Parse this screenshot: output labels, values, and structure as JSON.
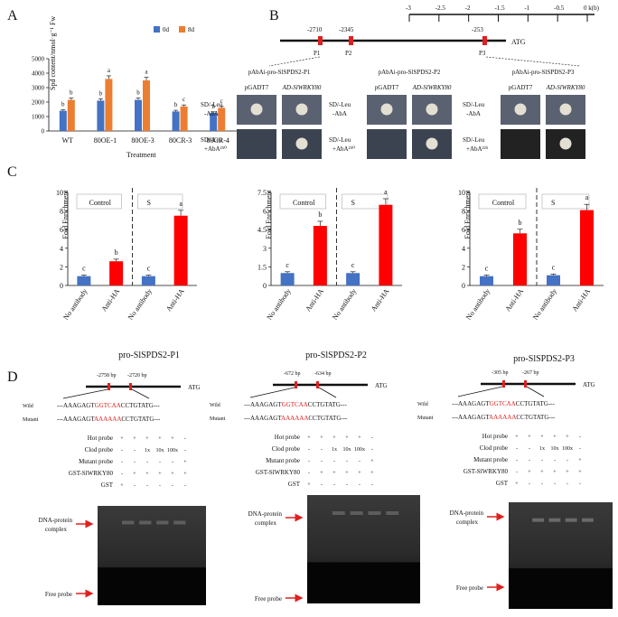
{
  "panels": {
    "a": "A",
    "b": "B",
    "c": "C",
    "d": "D"
  },
  "panelA": {
    "chart_data": {
      "type": "bar",
      "title": "",
      "ylabel": "Spd content/nmol·g⁻¹ Fw",
      "xlabel": "Treatment",
      "ylim": [
        0,
        5000
      ],
      "yticks": [
        "0",
        "1000",
        "2000",
        "3000",
        "4000",
        "5000"
      ],
      "categories": [
        "WT",
        "80OE-1",
        "80OE-3",
        "80CR-3",
        "80CR-4"
      ],
      "series": [
        {
          "name": "0d",
          "color": "#4472c4",
          "values": [
            1400,
            2100,
            2150,
            1350,
            1250
          ],
          "letters": [
            "b",
            "b",
            "b",
            "b",
            "b"
          ]
        },
        {
          "name": "8d",
          "color": "#ed7d31",
          "values": [
            2150,
            3600,
            3500,
            1700,
            1600
          ],
          "letters": [
            "b",
            "a",
            "a",
            "c",
            "c"
          ]
        }
      ]
    }
  },
  "panelB": {
    "scale": {
      "ticks": [
        "-3",
        "-2.5",
        "-2",
        "-1.5",
        "-1",
        "-0.5",
        "0 k(b)"
      ]
    },
    "positions": [
      "-2710",
      "-2345",
      "-253"
    ],
    "sites": [
      "P1",
      "P2",
      "P3"
    ],
    "atg": "ATG",
    "constructs": [
      "pAbAi-pro-SlSPDS2-P1",
      "pAbAi-pro-SlSPDS2-P2",
      "pAbAi-pro-SlSPDS2-P3"
    ],
    "cols": [
      "pGADT7",
      "AD-SlWRKY80"
    ],
    "media_top": [
      "SD/-Leu",
      "-AbA"
    ],
    "media_bot": [
      [
        "SD/-Leu",
        "+AbA²⁵⁰"
      ],
      [
        "SD/-Leu",
        "+AbA²⁵⁰"
      ],
      [
        "SD/-Leu",
        "+AbA²²⁵"
      ]
    ]
  },
  "panelC": {
    "chart_data": [
      {
        "type": "bar",
        "ylabel": "Fold Enrichment",
        "ylim": [
          0,
          10
        ],
        "yticks": [
          "0",
          "2",
          "4",
          "6",
          "8",
          "10"
        ],
        "groups": [
          "Control",
          "S"
        ],
        "categories": [
          "No antibody",
          "Anti-HA",
          "No antibody",
          "Anti-HA"
        ],
        "values": [
          1.0,
          2.6,
          1.0,
          7.5
        ],
        "letters": [
          "c",
          "b",
          "c",
          "a"
        ]
      },
      {
        "type": "bar",
        "ylabel": "Fold Enrichment",
        "ylim": [
          0,
          7.5
        ],
        "yticks": [
          "0",
          "1.5",
          "3",
          "4.5",
          "6",
          "7.5"
        ],
        "groups": [
          "Control",
          "S"
        ],
        "categories": [
          "No antibody",
          "Anti-HA",
          "No antibody",
          "Anti-HA"
        ],
        "values": [
          1.0,
          4.8,
          1.0,
          6.5
        ],
        "letters": [
          "c",
          "b",
          "c",
          "a"
        ]
      },
      {
        "type": "bar",
        "ylabel": "Fold Enrichment",
        "ylim": [
          0,
          10
        ],
        "yticks": [
          "0",
          "2",
          "4",
          "6",
          "8",
          "10"
        ],
        "groups": [
          "Control",
          "S"
        ],
        "categories": [
          "No antibody",
          "Anti-HA",
          "No antibody",
          "Anti-HA"
        ],
        "values": [
          1.0,
          5.6,
          1.1,
          8.1
        ],
        "letters": [
          "c",
          "b",
          "c",
          "a"
        ]
      }
    ]
  },
  "panelD": {
    "titles": [
      "pro-SlSPDS2-P1",
      "pro-SlSPDS2-P2",
      "pro-SlSPDS2-P3"
    ],
    "bp": [
      [
        "-2758 bp",
        "-2720 bp"
      ],
      [
        "-672 bp",
        "-634 bp"
      ],
      [
        "-305 bp",
        "-267 bp"
      ]
    ],
    "atg": "ATG",
    "wild_label": "Wild",
    "mutant_label": "Mutant",
    "wild_seq": [
      "---AAAGAGT",
      "GGTCAA",
      "CCTGTATG---"
    ],
    "mutant_seq": [
      "---AAAGAGT",
      "AAAAAA",
      "CCTGTATG---"
    ],
    "rows": [
      "Hot probe",
      "Clod probe",
      "Mutant probe",
      "GST-SlWRKY80",
      "GST"
    ],
    "lanes": [
      [
        "+",
        "+",
        "+",
        "+",
        "+",
        "-"
      ],
      [
        "-",
        "-",
        "1x",
        "10x",
        "100x",
        "-"
      ],
      [
        "-",
        "-",
        "-",
        "-",
        "-",
        "+"
      ],
      [
        "-",
        "+",
        "+",
        "+",
        "+",
        "+"
      ],
      [
        "+",
        "-",
        "-",
        "-",
        "-",
        "-"
      ]
    ],
    "dna_protein": [
      "DNA-protein",
      "complex"
    ],
    "free_probe": "Free probe"
  }
}
